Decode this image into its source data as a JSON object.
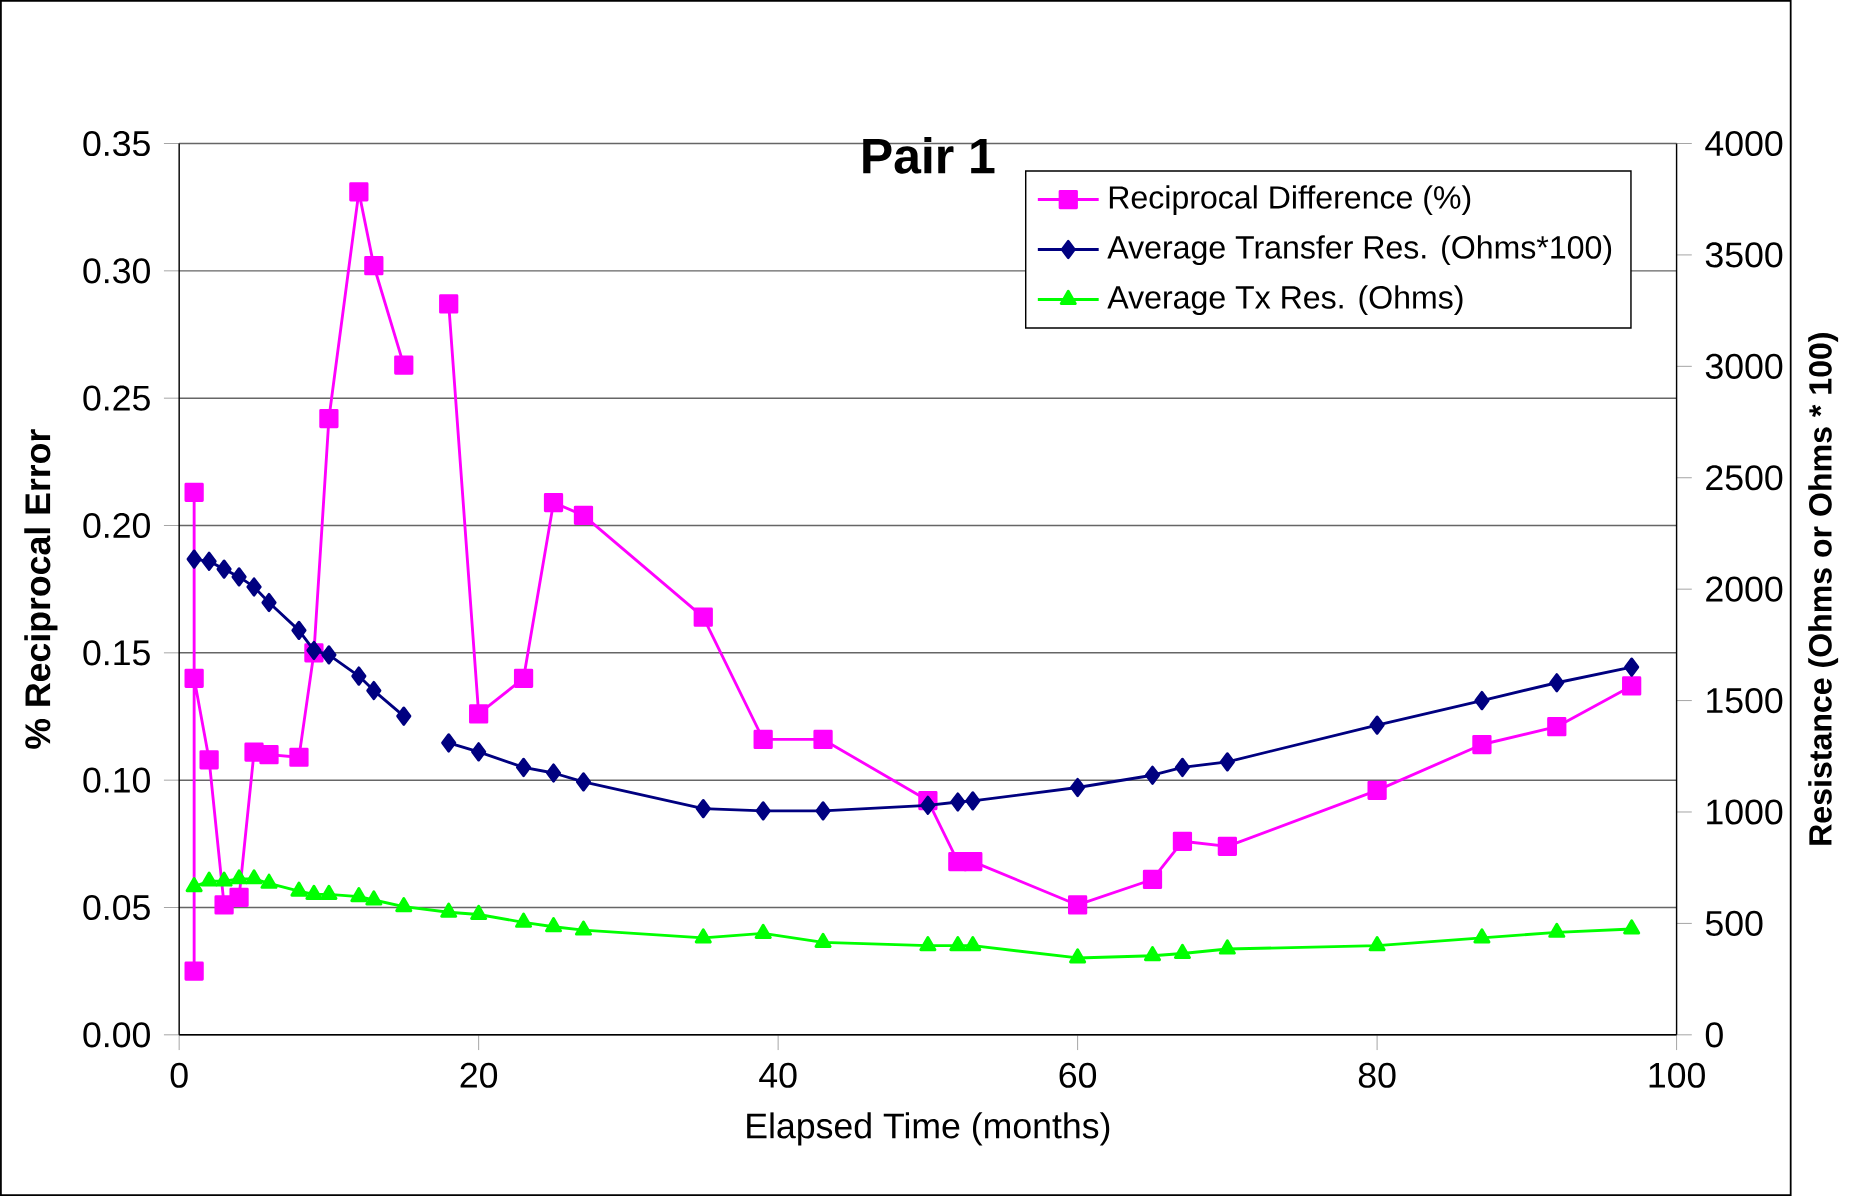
{
  "chart_data": {
    "type": "line",
    "title": "Pair 1",
    "xlabel": "Elapsed Time (months)",
    "ylabel": "% Reciprocal Error",
    "y2label": "Resistance (Ohms or Ohms * 100)",
    "xlim": [
      0,
      100
    ],
    "xticks": [
      0,
      20,
      40,
      60,
      80,
      100
    ],
    "ylim": [
      0,
      0.35
    ],
    "yticks": [
      {
        "value": 0,
        "label": "0.00"
      },
      {
        "value": 0.05,
        "label": "0.05"
      },
      {
        "value": 0.1,
        "label": "0.10"
      },
      {
        "value": 0.15,
        "label": "0.15"
      },
      {
        "value": 0.2,
        "label": "0.20"
      },
      {
        "value": 0.25,
        "label": "0.25"
      },
      {
        "value": 0.3,
        "label": "0.30"
      },
      {
        "value": 0.35,
        "label": "0.35"
      }
    ],
    "y2lim": [
      0,
      4000
    ],
    "y2ticks": [
      0,
      500,
      1000,
      1500,
      2000,
      2500,
      3000,
      3500,
      4000
    ],
    "grid": "y",
    "legend": "top right",
    "series": [
      {
        "name": "Reciprocal Difference (%)",
        "color": "#ff00ff",
        "marker": "square",
        "x": [
          1,
          1,
          1,
          2,
          3,
          4,
          5,
          6,
          8,
          9,
          10,
          12,
          13,
          15,
          16,
          18,
          20,
          23,
          25,
          27,
          35,
          39,
          43,
          50,
          52,
          53,
          60,
          65,
          67,
          70,
          80,
          87,
          92,
          97
        ],
        "values": [
          0.213,
          0.025,
          0.14,
          0.108,
          0.051,
          0.054,
          0.111,
          0.11,
          0.109,
          0.15,
          0.242,
          0.331,
          0.302,
          0.263,
          null,
          0.287,
          0.126,
          0.14,
          0.209,
          0.204,
          0.164,
          0.116,
          0.116,
          0.092,
          0.068,
          0.068,
          0.051,
          0.061,
          0.076,
          0.074,
          0.096,
          0.114,
          0.121,
          0.137
        ]
      },
      {
        "name": "Average Transfer Res. (Ohms*100)",
        "color": "#000080",
        "marker": "diamond",
        "axis": "y2",
        "x": [
          1,
          2,
          3,
          4,
          5,
          6,
          8,
          9,
          10,
          12,
          13,
          15,
          16,
          18,
          20,
          23,
          25,
          27,
          35,
          39,
          43,
          50,
          52,
          53,
          60,
          65,
          67,
          70,
          80,
          87,
          92,
          97
        ],
        "values": [
          2135,
          2125,
          2090,
          2055,
          2010,
          1940,
          1815,
          1725,
          1705,
          1610,
          1545,
          1430,
          null,
          1310,
          1270,
          1200,
          1175,
          1135,
          1015,
          1005,
          1005,
          1030,
          1045,
          1050,
          1110,
          1165,
          1200,
          1225,
          1390,
          1500,
          1580,
          1650
        ]
      },
      {
        "name": "Average Tx Res. (Ohms)",
        "color": "#00ff00",
        "marker": "triangle",
        "axis": "y2",
        "x": [
          1,
          2,
          3,
          4,
          5,
          6,
          8,
          9,
          10,
          12,
          13,
          15,
          18,
          20,
          23,
          25,
          27,
          35,
          39,
          43,
          50,
          52,
          53,
          60,
          65,
          67,
          70,
          80,
          87,
          92,
          97
        ],
        "values": [
          665,
          690,
          690,
          700,
          700,
          680,
          645,
          630,
          630,
          620,
          605,
          575,
          550,
          540,
          505,
          485,
          470,
          435,
          455,
          415,
          400,
          400,
          400,
          345,
          355,
          365,
          385,
          400,
          435,
          460,
          475
        ]
      }
    ]
  }
}
